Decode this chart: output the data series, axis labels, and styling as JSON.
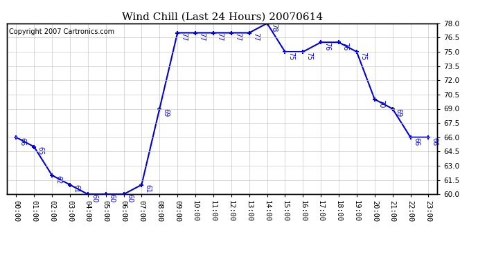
{
  "title": "Wind Chill (Last 24 Hours) 20070614",
  "copyright_text": "Copyright 2007 Cartronics.com",
  "hours": [
    0,
    1,
    2,
    3,
    4,
    5,
    6,
    7,
    8,
    9,
    10,
    11,
    12,
    13,
    14,
    15,
    16,
    17,
    18,
    19,
    20,
    21,
    22,
    23
  ],
  "values": [
    66,
    65,
    62,
    61,
    60,
    60,
    60,
    61,
    69,
    77,
    77,
    77,
    77,
    77,
    78,
    75,
    75,
    76,
    76,
    75,
    70,
    69,
    66,
    66
  ],
  "labels": [
    "66",
    "65",
    "62",
    "61",
    "60",
    "60",
    "60",
    "61",
    "69",
    "77",
    "77",
    "77",
    "77",
    "77",
    "78",
    "75",
    "75",
    "76",
    "76",
    "75",
    "70",
    "69",
    "66",
    "66"
  ],
  "ylim_min": 60.0,
  "ylim_max": 78.0,
  "ytick_step": 1.5,
  "line_color": "#0000cc",
  "marker_color": "#0000cc",
  "background_color": "#ffffff",
  "grid_color": "#c8c8c8",
  "title_fontsize": 11,
  "label_fontsize": 7,
  "tick_fontsize": 7.5,
  "copyright_fontsize": 7
}
